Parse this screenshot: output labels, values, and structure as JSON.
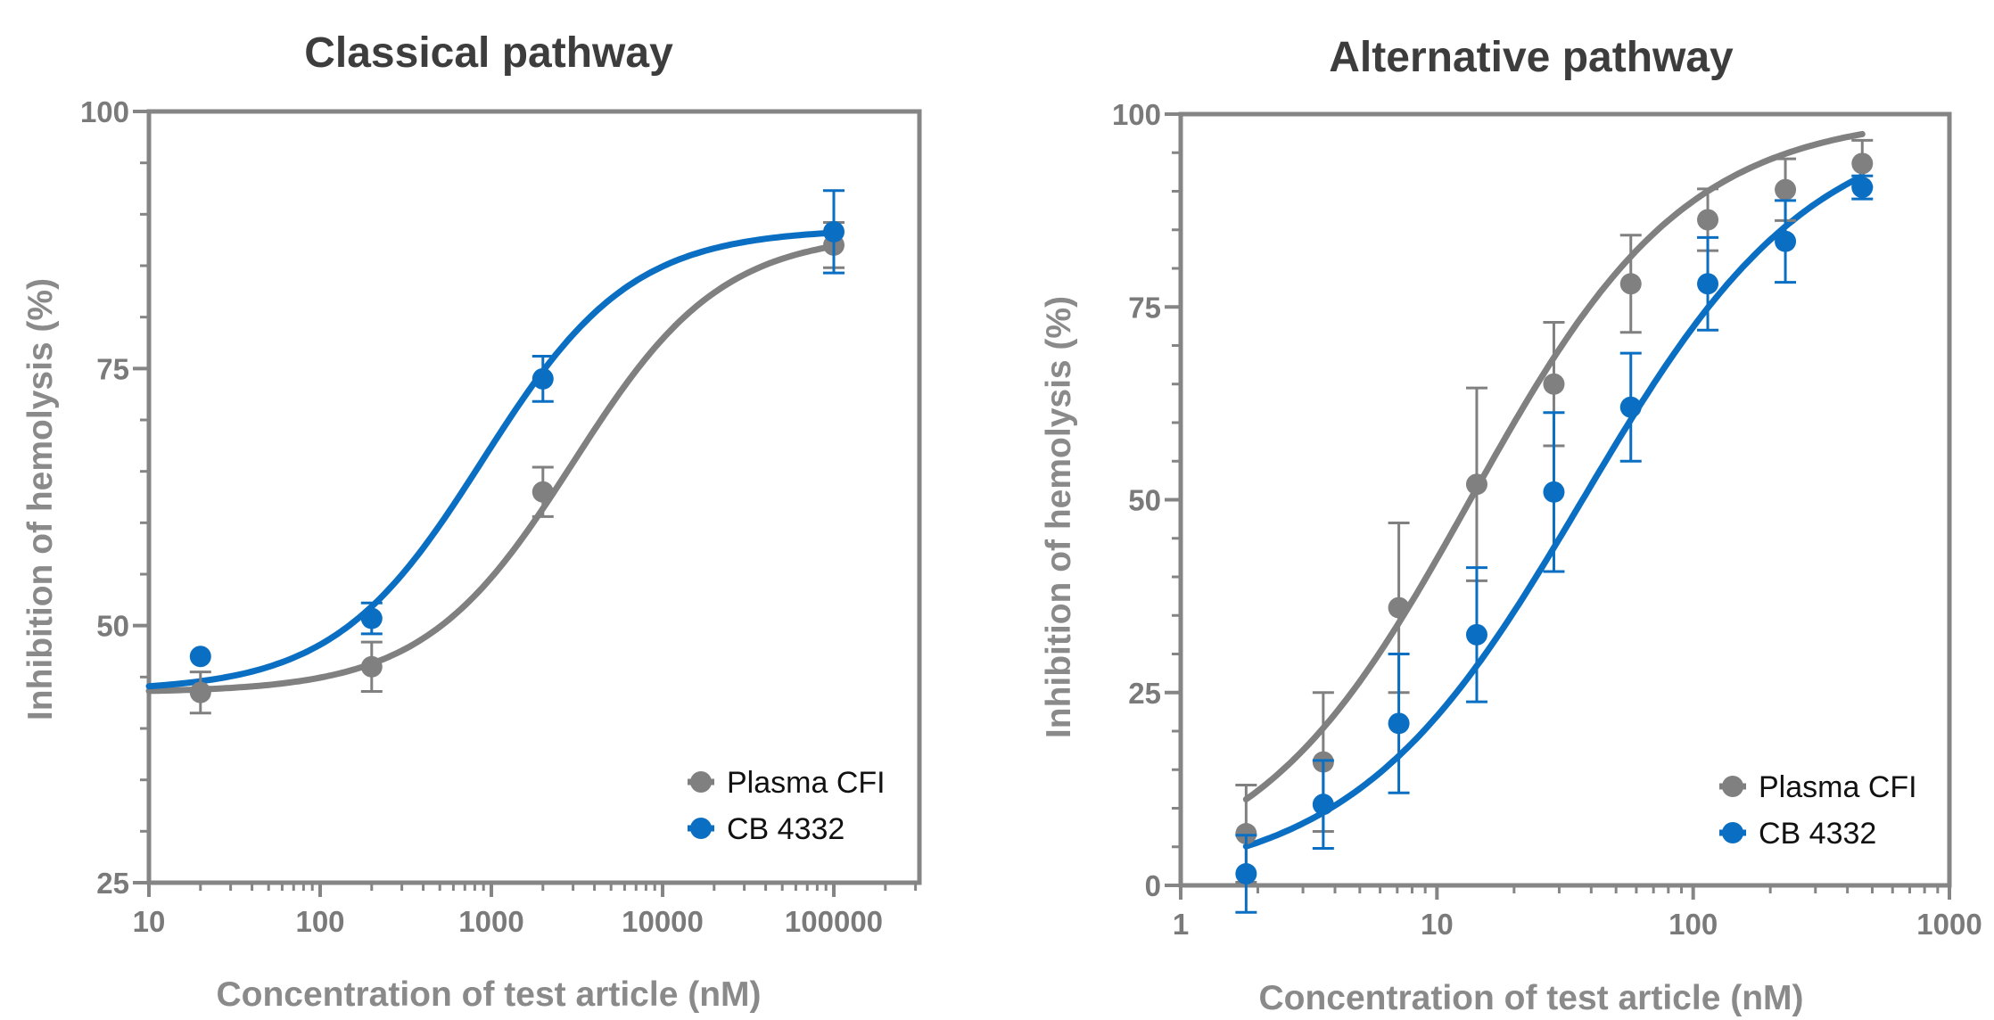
{
  "chart_data": [
    {
      "type": "scatter",
      "title": "Classical pathway",
      "xlabel": "Concentration of test article (nM)",
      "ylabel": "Inhibition of hemolysis (%)",
      "xscale": "log",
      "xlim": [
        10,
        316228
      ],
      "ylim": [
        25,
        100
      ],
      "xticks": [
        "10",
        "100",
        "1000",
        "10000",
        "100000"
      ],
      "xtick_values": [
        10,
        100,
        1000,
        10000,
        100000
      ],
      "yticks": [
        "25",
        "50",
        "75",
        "100"
      ],
      "ytick_values": [
        25,
        50,
        75,
        100
      ],
      "legend_position": "bottom-right",
      "series": [
        {
          "name": "Plasma CFI",
          "color": "#808080",
          "points": [
            {
              "x": 20,
              "y": 43.5,
              "err": 2.0
            },
            {
              "x": 200,
              "y": 46.0,
              "err": 2.4
            },
            {
              "x": 2000,
              "y": 63.0,
              "err": 2.4
            },
            {
              "x": 100000,
              "y": 87.0,
              "err": 2.2
            }
          ],
          "fit": {
            "bottom": 43.5,
            "top": 88.2,
            "ec50": 3000,
            "hill": 1.0
          }
        },
        {
          "name": "CB 4332",
          "color": "#0a6fc2",
          "points": [
            {
              "x": 20,
              "y": 47.0,
              "err": 0
            },
            {
              "x": 200,
              "y": 50.7,
              "err": 1.5
            },
            {
              "x": 2000,
              "y": 74.0,
              "err": 2.2
            },
            {
              "x": 100000,
              "y": 88.3,
              "err": 4.0
            }
          ],
          "fit": {
            "bottom": 43.6,
            "top": 88.6,
            "ec50": 890,
            "hill": 1.0
          }
        }
      ]
    },
    {
      "type": "scatter",
      "title": "Alternative pathway",
      "xlabel": "Concentration of test article (nM)",
      "ylabel": "Inhibition of hemolysis (%)",
      "xscale": "log",
      "xlim": [
        1,
        1000
      ],
      "ylim": [
        0,
        100
      ],
      "xticks": [
        "1",
        "10",
        "100",
        "1000"
      ],
      "xtick_values": [
        1,
        10,
        100,
        1000
      ],
      "yticks": [
        "0",
        "25",
        "50",
        "75",
        "100"
      ],
      "ytick_values": [
        0,
        25,
        50,
        75,
        100
      ],
      "legend_position": "bottom-right",
      "series": [
        {
          "name": "Plasma CFI",
          "color": "#808080",
          "points": [
            {
              "x": 1.8,
              "y": 6.7,
              "err": 6.3
            },
            {
              "x": 3.6,
              "y": 16.0,
              "err": 9.0
            },
            {
              "x": 7.1,
              "y": 36.0,
              "err": 11.0
            },
            {
              "x": 14.3,
              "y": 52.0,
              "err": 12.5
            },
            {
              "x": 28.6,
              "y": 65.0,
              "err": 8.0
            },
            {
              "x": 57.1,
              "y": 78.0,
              "err": 6.3
            },
            {
              "x": 114,
              "y": 86.3,
              "err": 4.0
            },
            {
              "x": 229,
              "y": 90.2,
              "err": 4.0
            },
            {
              "x": 457,
              "y": 93.6,
              "err": 3.0
            }
          ],
          "fit": {
            "bottom": 0,
            "top": 100,
            "ec50": 13.5,
            "hill": 1.03
          }
        },
        {
          "name": "CB 4332",
          "color": "#0a6fc2",
          "points": [
            {
              "x": 1.8,
              "y": 1.5,
              "err": 5.0
            },
            {
              "x": 3.6,
              "y": 10.5,
              "err": 5.7
            },
            {
              "x": 7.1,
              "y": 21.0,
              "err": 9.0
            },
            {
              "x": 14.3,
              "y": 32.5,
              "err": 8.7
            },
            {
              "x": 28.6,
              "y": 51.0,
              "err": 10.3
            },
            {
              "x": 57.1,
              "y": 62.0,
              "err": 7.0
            },
            {
              "x": 114,
              "y": 78.0,
              "err": 6.0
            },
            {
              "x": 229,
              "y": 83.5,
              "err": 5.3
            },
            {
              "x": 457,
              "y": 90.5,
              "err": 1.5
            }
          ],
          "fit": {
            "bottom": 0,
            "top": 100,
            "ec50": 37,
            "hill": 0.97
          }
        }
      ]
    }
  ]
}
